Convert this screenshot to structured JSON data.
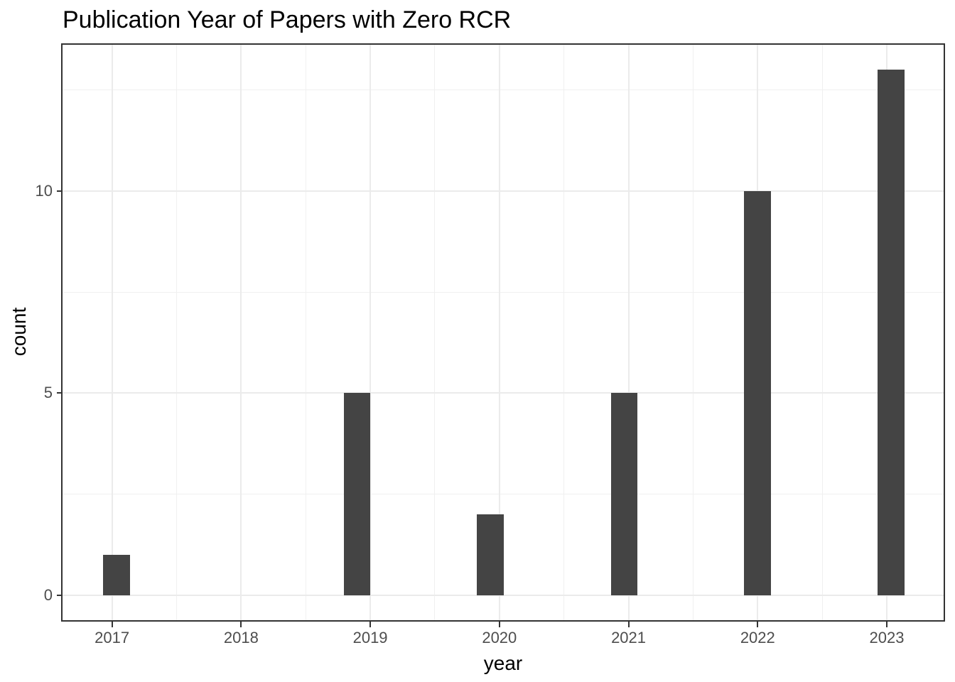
{
  "chart_data": {
    "type": "bar",
    "subtype": "histogram",
    "title": "Publication Year of Papers with Zero RCR",
    "xlabel": "year",
    "ylabel": "count",
    "categories": [
      2017,
      2018,
      2019,
      2020,
      2021,
      2022,
      2023
    ],
    "values": [
      1,
      0,
      5,
      2,
      5,
      10,
      13
    ],
    "bars": [
      {
        "bin_center": 2017.034,
        "count": 1
      },
      {
        "bin_center": 2018.897,
        "count": 5
      },
      {
        "bin_center": 2019.931,
        "count": 2
      },
      {
        "bin_center": 2020.966,
        "count": 5
      },
      {
        "bin_center": 2022.0,
        "count": 10
      },
      {
        "bin_center": 2023.034,
        "count": 13
      }
    ],
    "bar_width_years": 0.2069,
    "x_ticks": [
      2017,
      2018,
      2019,
      2020,
      2021,
      2022,
      2023
    ],
    "y_ticks": [
      0,
      5,
      10
    ],
    "x_minor_gridlines": [
      2016.5,
      2017.5,
      2018.5,
      2019.5,
      2020.5,
      2021.5,
      2022.5,
      2023.5
    ],
    "y_minor_gridlines": [
      2.5,
      7.5,
      12.5
    ],
    "xlim": [
      2016.617,
      2023.44
    ],
    "ylim": [
      -0.615,
      13.62
    ],
    "grid": true,
    "legend": false
  },
  "colors": {
    "bar_fill": "#444444",
    "panel_border": "#333333",
    "grid_major": "#ebebeb",
    "grid_minor": "#f0f0f0",
    "tick_mark": "#333333",
    "tick_label": "#4d4d4d",
    "title": "#000000",
    "background": "#ffffff"
  }
}
